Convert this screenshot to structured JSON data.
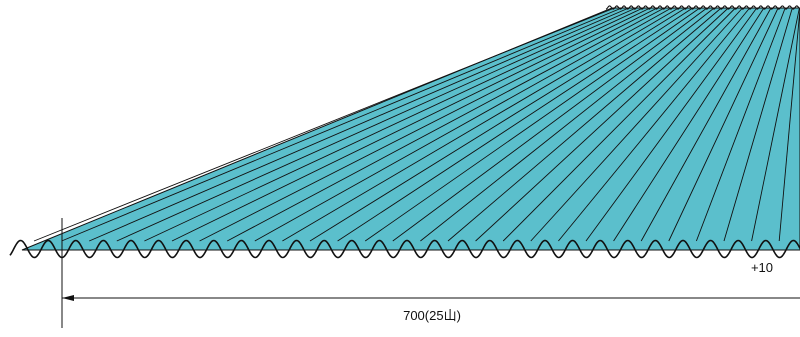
{
  "diagram": {
    "sheet_color": "#5bbfcc",
    "line_color": "#111111",
    "crest_count": 25,
    "dimension": {
      "main_label": "700(25山)",
      "tolerance_label": "+10"
    }
  }
}
